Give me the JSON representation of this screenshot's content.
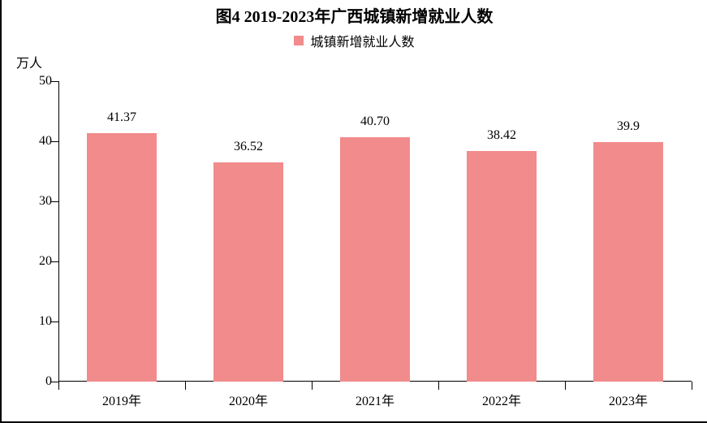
{
  "chart": {
    "type": "bar",
    "title": "图4 2019-2023年广西城镇新增就业人数",
    "title_fontsize": 20,
    "title_weight": "bold",
    "y_axis_label": "万人",
    "y_label_fontsize": 16,
    "legend": {
      "label": "城镇新增就业人数",
      "swatch_color": "#f18b8c",
      "fontsize": 16
    },
    "categories": [
      "2019年",
      "2020年",
      "2021年",
      "2022年",
      "2023年"
    ],
    "values": [
      41.37,
      36.52,
      40.7,
      38.42,
      39.9
    ],
    "value_labels": [
      "41.37",
      "36.52",
      "40.70",
      "38.42",
      "39.9"
    ],
    "bar_color": "#f18b8c",
    "ylim": [
      0,
      50
    ],
    "ytick_step": 10,
    "yticks": [
      0,
      10,
      20,
      30,
      40,
      50
    ],
    "bar_width_ratio": 0.55,
    "axis_color": "#000000",
    "background_color": "#ffffff",
    "label_fontsize": 16,
    "tick_fontsize": 16,
    "value_label_fontsize": 16
  }
}
